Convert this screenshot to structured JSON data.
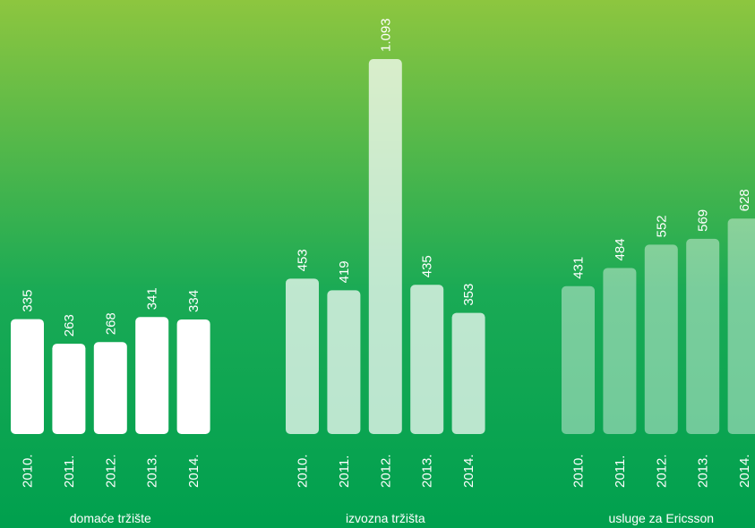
{
  "chart_data": [
    {
      "type": "bar",
      "title": "domaće tržište",
      "categories": [
        "2010.",
        "2011.",
        "2012.",
        "2013.",
        "2014."
      ],
      "values": [
        335,
        263,
        268,
        341,
        334
      ],
      "color": "#ffffff"
    },
    {
      "type": "bar",
      "title": "izvozna tržišta",
      "categories": [
        "2010.",
        "2011.",
        "2012.",
        "2013.",
        "2014."
      ],
      "values": [
        453,
        419,
        1093,
        435,
        353
      ],
      "value_labels": [
        "453",
        "419",
        "1.093",
        "435",
        "353"
      ],
      "color": "rgba(255,255,255,0.72)"
    },
    {
      "type": "bar",
      "title": "usluge za Ericsson",
      "categories": [
        "2010.",
        "2011.",
        "2012.",
        "2013.",
        "2014."
      ],
      "values": [
        431,
        484,
        552,
        569,
        628
      ],
      "color": "rgba(255,255,255,0.42)"
    }
  ]
}
